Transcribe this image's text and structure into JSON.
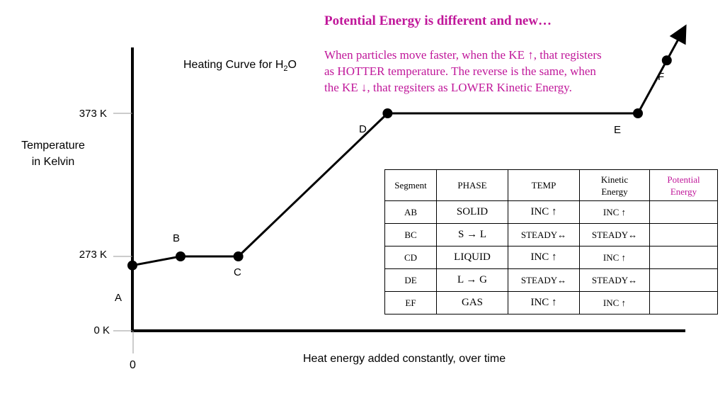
{
  "note": {
    "title": "Potential Energy is different and new…",
    "line1": "When particles move faster, when the KE ↑, that registers",
    "line2": "as HOTTER temperature.  The reverse is the same, when",
    "line3": "the KE ↓, that regsiters as LOWER Kinetic Energy.",
    "color": "#c0179a"
  },
  "chart_data": {
    "type": "line",
    "title_main": "Heating Curve for H",
    "title_sub": "2",
    "title_tail": "O",
    "ylabel_line1": "Temperature",
    "ylabel_line2": "in Kelvin",
    "xlabel": "Heat energy added constantly, over time",
    "x_zero_label": "0",
    "y_ticks": [
      {
        "label": "373 K",
        "value": 373
      },
      {
        "label": "273 K",
        "value": 273
      },
      {
        "label": "0 K",
        "value": 0
      }
    ],
    "points": [
      {
        "label": "A",
        "x": 0,
        "y": 240
      },
      {
        "label": "B",
        "x": 1,
        "y": 273
      },
      {
        "label": "C",
        "x": 2.2,
        "y": 273
      },
      {
        "label": "D",
        "x": 5.3,
        "y": 373
      },
      {
        "label": "E",
        "x": 10.5,
        "y": 373
      },
      {
        "label": "F",
        "x": 11.1,
        "y": 410
      }
    ]
  },
  "table": {
    "headers": [
      "Segment",
      "PHASE",
      "TEMP",
      "Kinetic Energy",
      "Potential Energy"
    ],
    "header_kinetic": [
      "Kinetic",
      "Energy"
    ],
    "header_potential": [
      "Potential",
      "Energy"
    ],
    "rows": [
      {
        "segment": "AB",
        "phase": "SOLID",
        "temp": "INC ↑",
        "ke": "INC ↑",
        "pe": ""
      },
      {
        "segment": "BC",
        "phase": "S → L",
        "temp": "STEADY↔",
        "ke": "STEADY↔",
        "pe": ""
      },
      {
        "segment": "CD",
        "phase": "LIQUID",
        "temp": "INC ↑",
        "ke": "INC ↑",
        "pe": ""
      },
      {
        "segment": "DE",
        "phase": "L → G",
        "temp": "STEADY↔",
        "ke": "STEADY↔",
        "pe": ""
      },
      {
        "segment": "EF",
        "phase": "GAS",
        "temp": "INC ↑",
        "ke": "INC ↑",
        "pe": ""
      }
    ]
  }
}
